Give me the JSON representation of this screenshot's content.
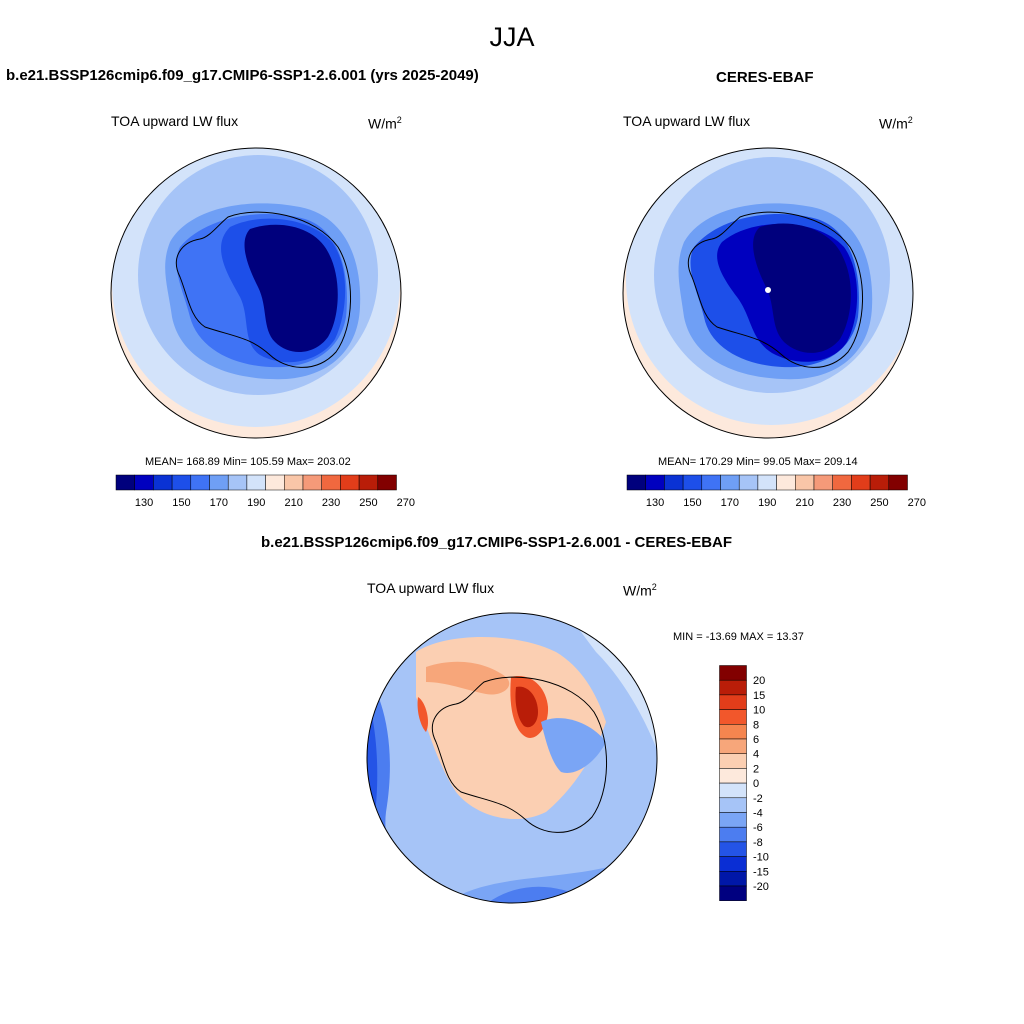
{
  "season": "JJA",
  "panels": [
    {
      "title": "b.e21.BSSP126cmip6.f09_g17.CMIP6-SSP1-2.6.001 (yrs 2025-2049)",
      "variable": "TOA upward LW flux",
      "units": "W/m",
      "units_exp": "2",
      "stats": "MEAN= 168.89  Min= 105.59  Max= 203.02",
      "mean": 168.89,
      "min": 105.59,
      "max": 203.02
    },
    {
      "title": "CERES-EBAF",
      "variable": "TOA upward LW flux",
      "units": "W/m",
      "units_exp": "2",
      "stats": "MEAN= 170.29  Min=  99.05  Max= 209.14",
      "mean": 170.29,
      "min": 99.05,
      "max": 209.14
    }
  ],
  "diff_panel": {
    "title": "b.e21.BSSP126cmip6.f09_g17.CMIP6-SSP1-2.6.001 - CERES-EBAF",
    "variable": "TOA upward LW flux",
    "units": "W/m",
    "units_exp": "2",
    "stats": "MIN = -13.69 MAX =  13.37",
    "min": -13.69,
    "max": 13.37
  },
  "abs_colorbar": {
    "colors": [
      "#00007d",
      "#0000bf",
      "#0a32d4",
      "#1d4fe9",
      "#3f73f5",
      "#6f9ff5",
      "#a6c4f7",
      "#d3e3fa",
      "#fde9dc",
      "#f9c6a8",
      "#f59a79",
      "#f0683f",
      "#e23d1a",
      "#b91d08",
      "#820000"
    ],
    "labels": [
      "130",
      "150",
      "170",
      "190",
      "210",
      "230",
      "250",
      "270"
    ]
  },
  "diff_colorbar": {
    "colors": [
      "#820000",
      "#b91d08",
      "#e23d1a",
      "#f2572b",
      "#f5854f",
      "#f7a67a",
      "#fbcfb2",
      "#fde9dc",
      "#d3e3fa",
      "#a6c4f7",
      "#7aa5f5",
      "#4c7df0",
      "#2454e6",
      "#0a2ed4",
      "#0017a8",
      "#000080"
    ],
    "labels": [
      "20",
      "15",
      "10",
      "8",
      "6",
      "4",
      "2",
      "0",
      "-2",
      "-4",
      "-6",
      "-8",
      "-10",
      "-15",
      "-20"
    ]
  }
}
